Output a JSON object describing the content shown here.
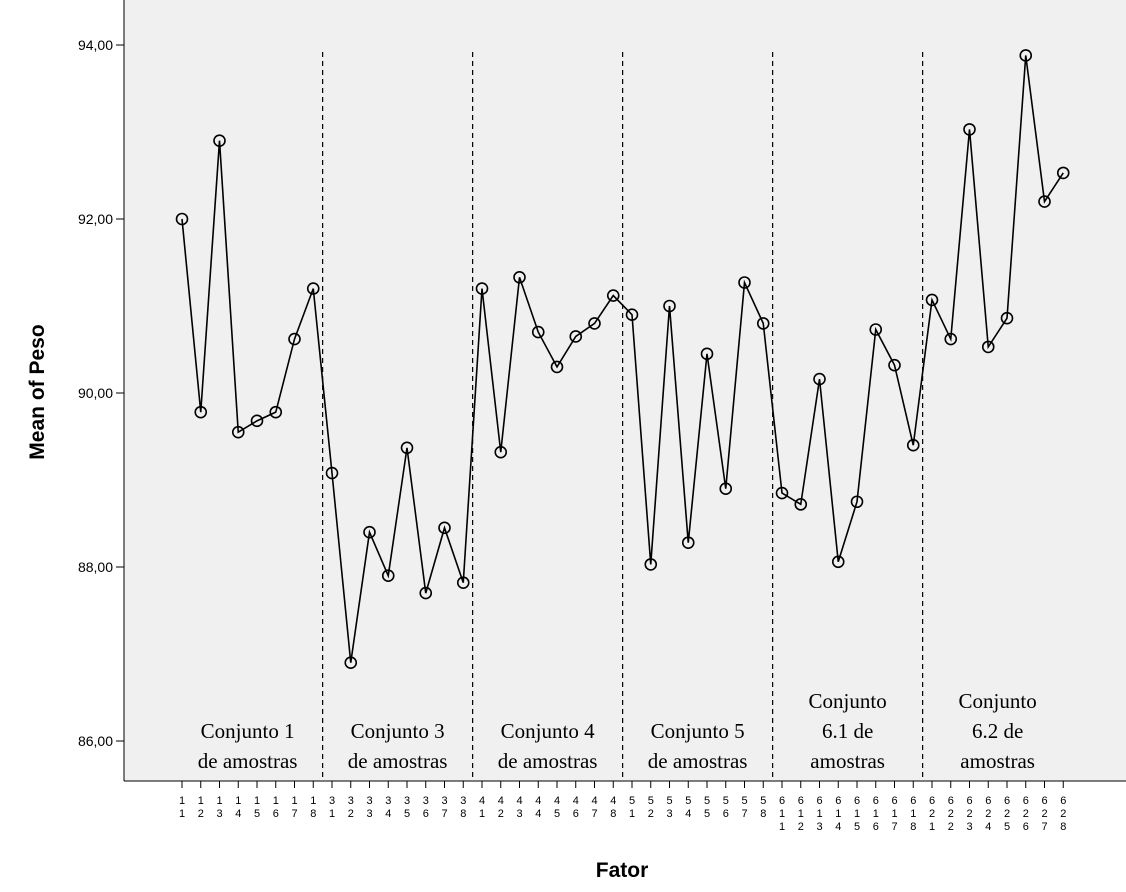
{
  "chart_data": {
    "type": "line",
    "title": "",
    "xlabel": "Fator",
    "ylabel": "Mean of Peso",
    "ylim": [
      85.6,
      94.4
    ],
    "yticks": [
      "86,00",
      "88,00",
      "90,00",
      "92,00",
      "94,00"
    ],
    "grid": false,
    "marker": "open-circle",
    "colors": {
      "plot_background": "#f0f0f0",
      "line": "#000000"
    },
    "categories": [
      "1 1",
      "1 2",
      "1 3",
      "1 4",
      "1 5",
      "1 6",
      "1 7",
      "1 8",
      "3 1",
      "3 2",
      "3 3",
      "3 4",
      "3 5",
      "3 6",
      "3 7",
      "3 8",
      "4 1",
      "4 2",
      "4 3",
      "4 4",
      "4 5",
      "4 6",
      "4 7",
      "4 8",
      "5 1",
      "5 2",
      "5 3",
      "5 4",
      "5 5",
      "5 6",
      "5 7",
      "5 8",
      "6 1 1",
      "6 1 2",
      "6 1 3",
      "6 1 4",
      "6 1 5",
      "6 1 6",
      "6 1 7",
      "6 1 8",
      "6 2 1",
      "6 2 2",
      "6 2 3",
      "6 2 4",
      "6 2 5",
      "6 2 6",
      "6 2 7",
      "6 2 8"
    ],
    "series": [
      {
        "values": [
          92.0,
          89.78,
          92.9,
          89.55,
          89.68,
          89.78,
          90.62,
          91.2,
          89.08,
          86.9,
          88.4,
          87.9,
          89.37,
          87.7,
          88.45,
          87.82,
          91.2,
          89.32,
          91.33,
          90.7,
          90.3,
          90.65,
          90.8,
          91.12,
          90.9,
          88.03,
          91.0,
          88.28,
          90.45,
          88.9,
          91.27,
          90.8,
          88.85,
          88.72,
          90.16,
          88.06,
          88.75,
          90.73,
          90.32,
          89.4,
          91.07,
          90.62,
          93.03,
          90.53,
          90.86,
          93.88,
          92.2,
          92.53
        ]
      }
    ],
    "annotations": [
      {
        "lines": [
          "Conjunto 1",
          "de amostras"
        ],
        "from_index": 0,
        "to_index": 7
      },
      {
        "lines": [
          "Conjunto 3",
          "de amostras"
        ],
        "from_index": 8,
        "to_index": 15
      },
      {
        "lines": [
          "Conjunto 4",
          "de amostras"
        ],
        "from_index": 16,
        "to_index": 23
      },
      {
        "lines": [
          "Conjunto 5",
          "de amostras"
        ],
        "from_index": 24,
        "to_index": 31
      },
      {
        "lines": [
          "Conjunto",
          "6.1 de",
          "amostras"
        ],
        "from_index": 32,
        "to_index": 39
      },
      {
        "lines": [
          "Conjunto",
          "6.2 de",
          "amostras"
        ],
        "from_index": 40,
        "to_index": 47
      }
    ]
  }
}
